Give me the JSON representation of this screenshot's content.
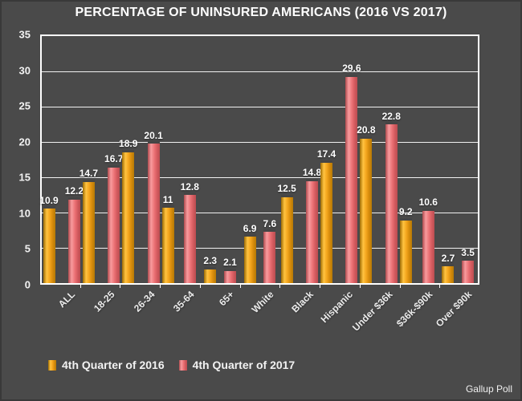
{
  "title": "PERCENTAGE OF UNINSURED AMERICANS (2016 VS 2017)",
  "source": "Gallup Poll",
  "colors": {
    "background": "#4a4a4a",
    "grid": "#ffffff",
    "series_2016_main": "#f5a71f",
    "series_2017_main": "#ec7276",
    "text": "#ffffff"
  },
  "chart_data": {
    "type": "bar",
    "title": "PERCENTAGE OF UNINSURED AMERICANS (2016 VS 2017)",
    "categories": [
      "ALL",
      "18-25",
      "26-34",
      "35-64",
      "65+",
      "White",
      "Black",
      "Hispanic",
      "Under $36k",
      "$36k-$90k",
      "Over $90k"
    ],
    "series": [
      {
        "name": "4th Quarter of 2016",
        "values": [
          10.9,
          14.7,
          18.9,
          11,
          2.3,
          6.9,
          12.5,
          17.4,
          20.8,
          9.2,
          2.7
        ]
      },
      {
        "name": "4th Quarter of 2017",
        "values": [
          12.2,
          16.7,
          20.1,
          12.8,
          2.1,
          7.6,
          14.8,
          29.6,
          22.8,
          10.6,
          3.5
        ]
      }
    ],
    "xlabel": "",
    "ylabel": "",
    "ylim": [
      0,
      35
    ],
    "ytick_interval": 5,
    "y_ticks": [
      0,
      5,
      10,
      15,
      20,
      25,
      30,
      35
    ],
    "grid": true,
    "legend_position": "bottom",
    "data_labels": true
  },
  "legend": {
    "items": [
      {
        "label": "4th Quarter of 2016"
      },
      {
        "label": "4th Quarter of 2017"
      }
    ]
  }
}
